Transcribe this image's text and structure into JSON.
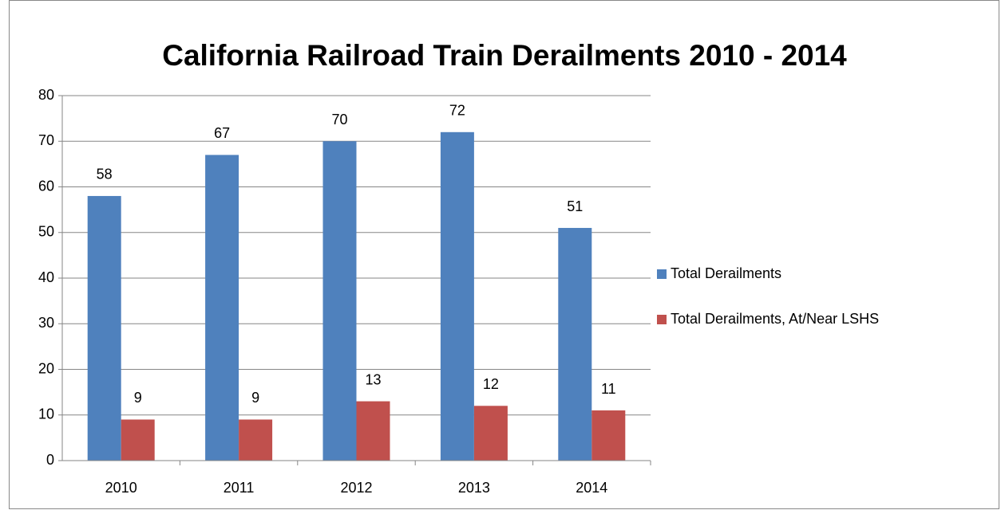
{
  "chart_data": {
    "type": "bar",
    "title": "California Railroad Train Derailments 2010 - 2014",
    "categories": [
      "2010",
      "2011",
      "2012",
      "2013",
      "2014"
    ],
    "series": [
      {
        "name": "Total Derailments",
        "color": "#4f81bd",
        "values": [
          58,
          67,
          70,
          72,
          51
        ]
      },
      {
        "name": "Total Derailments, At/Near LSHS",
        "color": "#c0504d",
        "values": [
          9,
          9,
          13,
          12,
          11
        ]
      }
    ],
    "ylim": [
      0,
      80
    ],
    "yticks": [
      0,
      10,
      20,
      30,
      40,
      50,
      60,
      70,
      80
    ],
    "grid": true,
    "legend": "right"
  }
}
